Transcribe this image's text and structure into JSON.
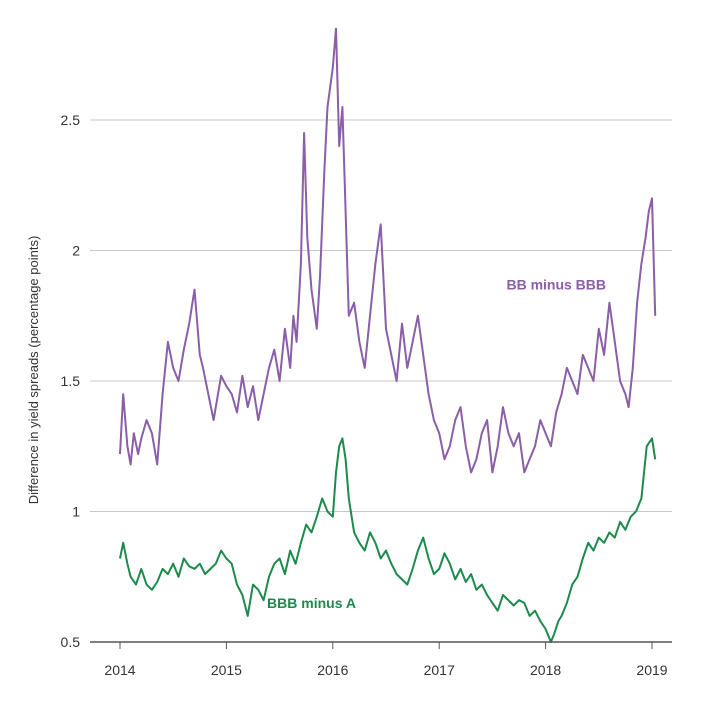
{
  "chart_data": {
    "type": "line",
    "ylabel": "Difference in yield spreads (percentage points)",
    "xlim": [
      2014,
      2019.1
    ],
    "ylim": [
      0.5,
      2.9
    ],
    "yticks": [
      0.5,
      1,
      1.5,
      2,
      2.5
    ],
    "ytick_labels": [
      "0.5",
      "1",
      "1.5",
      "2",
      "2.5"
    ],
    "xticks": [
      2014,
      2015,
      2016,
      2017,
      2018,
      2019
    ],
    "xtick_labels": [
      "2014",
      "2015",
      "2016",
      "2017",
      "2018",
      "2019"
    ],
    "grid": true,
    "series": [
      {
        "name": "BB minus BBB",
        "color": "#8a5ea8",
        "label_at": [
          2018.1,
          1.85
        ],
        "x": [
          2014.0,
          2014.03,
          2014.07,
          2014.1,
          2014.13,
          2014.17,
          2014.2,
          2014.25,
          2014.3,
          2014.35,
          2014.4,
          2014.45,
          2014.5,
          2014.55,
          2014.6,
          2014.65,
          2014.7,
          2014.75,
          2014.78,
          2014.83,
          2014.88,
          2014.95,
          2015.0,
          2015.05,
          2015.1,
          2015.15,
          2015.2,
          2015.25,
          2015.3,
          2015.35,
          2015.4,
          2015.45,
          2015.5,
          2015.55,
          2015.6,
          2015.63,
          2015.66,
          2015.7,
          2015.73,
          2015.76,
          2015.8,
          2015.85,
          2015.88,
          2015.92,
          2015.95,
          2016.0,
          2016.03,
          2016.06,
          2016.09,
          2016.12,
          2016.15,
          2016.2,
          2016.25,
          2016.3,
          2016.35,
          2016.4,
          2016.45,
          2016.5,
          2016.55,
          2016.6,
          2016.65,
          2016.7,
          2016.75,
          2016.8,
          2016.85,
          2016.9,
          2016.95,
          2017.0,
          2017.05,
          2017.1,
          2017.15,
          2017.2,
          2017.25,
          2017.3,
          2017.35,
          2017.4,
          2017.45,
          2017.5,
          2017.55,
          2017.6,
          2017.65,
          2017.7,
          2017.75,
          2017.8,
          2017.85,
          2017.9,
          2017.95,
          2018.0,
          2018.05,
          2018.1,
          2018.15,
          2018.2,
          2018.25,
          2018.3,
          2018.35,
          2018.4,
          2018.45,
          2018.5,
          2018.55,
          2018.6,
          2018.65,
          2018.7,
          2018.75,
          2018.78,
          2018.82,
          2018.86,
          2018.9,
          2018.94,
          2018.97,
          2019.0,
          2019.03
        ],
        "y": [
          1.22,
          1.45,
          1.25,
          1.18,
          1.3,
          1.22,
          1.28,
          1.35,
          1.3,
          1.18,
          1.45,
          1.65,
          1.55,
          1.5,
          1.62,
          1.72,
          1.85,
          1.6,
          1.55,
          1.45,
          1.35,
          1.52,
          1.48,
          1.45,
          1.38,
          1.52,
          1.4,
          1.48,
          1.35,
          1.45,
          1.55,
          1.62,
          1.5,
          1.7,
          1.55,
          1.75,
          1.65,
          1.95,
          2.45,
          2.05,
          1.85,
          1.7,
          1.9,
          2.3,
          2.55,
          2.7,
          2.85,
          2.4,
          2.55,
          2.15,
          1.75,
          1.8,
          1.65,
          1.55,
          1.75,
          1.95,
          2.1,
          1.7,
          1.6,
          1.5,
          1.72,
          1.55,
          1.65,
          1.75,
          1.6,
          1.45,
          1.35,
          1.3,
          1.2,
          1.25,
          1.35,
          1.4,
          1.25,
          1.15,
          1.2,
          1.3,
          1.35,
          1.15,
          1.25,
          1.4,
          1.3,
          1.25,
          1.3,
          1.15,
          1.2,
          1.25,
          1.35,
          1.3,
          1.25,
          1.38,
          1.45,
          1.55,
          1.5,
          1.45,
          1.6,
          1.55,
          1.5,
          1.7,
          1.6,
          1.8,
          1.65,
          1.5,
          1.45,
          1.4,
          1.55,
          1.8,
          1.95,
          2.05,
          2.15,
          2.2,
          1.75
        ]
      },
      {
        "name": "BBB minus A",
        "color": "#1d8a4c",
        "label_at": [
          2015.8,
          0.63
        ],
        "x": [
          2014.0,
          2014.03,
          2014.07,
          2014.1,
          2014.15,
          2014.2,
          2014.25,
          2014.3,
          2014.35,
          2014.4,
          2014.45,
          2014.5,
          2014.55,
          2014.6,
          2014.65,
          2014.7,
          2014.75,
          2014.8,
          2014.85,
          2014.9,
          2014.95,
          2015.0,
          2015.05,
          2015.1,
          2015.15,
          2015.2,
          2015.25,
          2015.3,
          2015.35,
          2015.4,
          2015.45,
          2015.5,
          2015.55,
          2015.6,
          2015.65,
          2015.7,
          2015.75,
          2015.8,
          2015.85,
          2015.9,
          2015.95,
          2016.0,
          2016.03,
          2016.06,
          2016.09,
          2016.12,
          2016.15,
          2016.2,
          2016.25,
          2016.3,
          2016.35,
          2016.4,
          2016.45,
          2016.5,
          2016.55,
          2016.6,
          2016.65,
          2016.7,
          2016.75,
          2016.8,
          2016.85,
          2016.9,
          2016.95,
          2017.0,
          2017.05,
          2017.1,
          2017.15,
          2017.2,
          2017.25,
          2017.3,
          2017.35,
          2017.4,
          2017.45,
          2017.5,
          2017.55,
          2017.6,
          2017.65,
          2017.7,
          2017.75,
          2017.8,
          2017.85,
          2017.9,
          2017.95,
          2018.0,
          2018.05,
          2018.08,
          2018.12,
          2018.15,
          2018.2,
          2018.25,
          2018.3,
          2018.35,
          2018.4,
          2018.45,
          2018.5,
          2018.55,
          2018.6,
          2018.65,
          2018.7,
          2018.75,
          2018.8,
          2018.85,
          2018.9,
          2018.95,
          2019.0,
          2019.03
        ],
        "y": [
          0.82,
          0.88,
          0.8,
          0.75,
          0.72,
          0.78,
          0.72,
          0.7,
          0.73,
          0.78,
          0.76,
          0.8,
          0.75,
          0.82,
          0.79,
          0.78,
          0.8,
          0.76,
          0.78,
          0.8,
          0.85,
          0.82,
          0.8,
          0.72,
          0.68,
          0.6,
          0.72,
          0.7,
          0.66,
          0.75,
          0.8,
          0.82,
          0.76,
          0.85,
          0.8,
          0.88,
          0.95,
          0.92,
          0.98,
          1.05,
          1.0,
          0.98,
          1.15,
          1.25,
          1.28,
          1.2,
          1.05,
          0.92,
          0.88,
          0.85,
          0.92,
          0.88,
          0.82,
          0.85,
          0.8,
          0.76,
          0.74,
          0.72,
          0.78,
          0.85,
          0.9,
          0.82,
          0.76,
          0.78,
          0.84,
          0.8,
          0.74,
          0.78,
          0.73,
          0.76,
          0.7,
          0.72,
          0.68,
          0.65,
          0.62,
          0.68,
          0.66,
          0.64,
          0.66,
          0.65,
          0.6,
          0.62,
          0.58,
          0.55,
          0.5,
          0.53,
          0.58,
          0.6,
          0.65,
          0.72,
          0.75,
          0.82,
          0.88,
          0.85,
          0.9,
          0.88,
          0.92,
          0.9,
          0.96,
          0.93,
          0.98,
          1.0,
          1.05,
          1.25,
          1.28,
          1.2
        ]
      }
    ]
  }
}
